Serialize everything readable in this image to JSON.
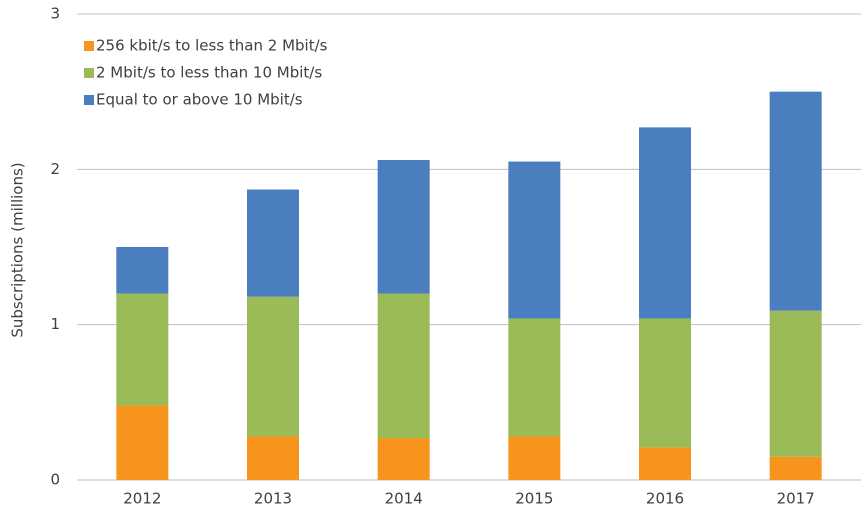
{
  "chart_data": {
    "type": "stacked_bar",
    "y_label": "Subscriptions (millions)",
    "categories": [
      "2012",
      "2013",
      "2014",
      "2015",
      "2016",
      "2017"
    ],
    "series": [
      {
        "name": "256 kbit/s to less than 2 Mbit/s",
        "color": "#f7941d",
        "values": [
          0.48,
          0.28,
          0.27,
          0.28,
          0.21,
          0.15
        ]
      },
      {
        "name": "2 Mbit/s to less than 10 Mbit/s",
        "color": "#9bbb59",
        "values": [
          0.72,
          0.9,
          0.93,
          0.76,
          0.83,
          0.94
        ]
      },
      {
        "name": "Equal to or above 10 Mbit/s",
        "color": "#4a7ebf",
        "values": [
          0.3,
          0.69,
          0.86,
          1.01,
          1.23,
          1.41
        ]
      }
    ],
    "ylim": [
      0,
      3
    ],
    "yticks": [
      0,
      1,
      2,
      3
    ],
    "grid": true,
    "legend": "top-left"
  }
}
